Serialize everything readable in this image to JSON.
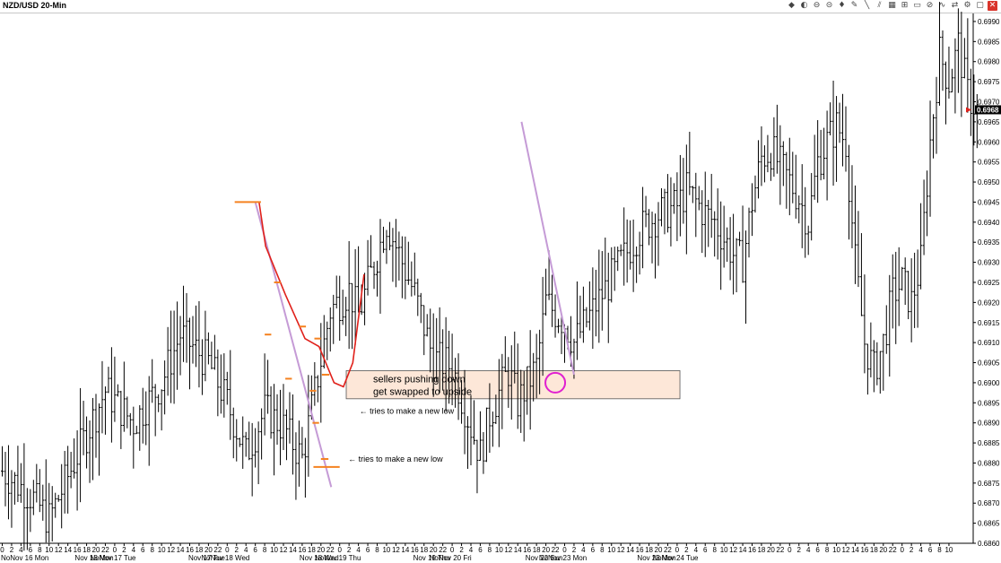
{
  "window": {
    "title": "NZD/USD 20-Min"
  },
  "toolbar": {
    "icons": [
      "chart-type-icon",
      "drawing-icon",
      "record-icon",
      "zoom-out-icon",
      "marker-icon",
      "pencil-icon",
      "line-icon",
      "channel-icon",
      "grid-icon",
      "fibonacci-icon",
      "ellipse-icon",
      "indicator-icon",
      "wave-icon",
      "arrows-icon",
      "settings-icon",
      "maximize-icon",
      "close-icon"
    ],
    "glyphs": [
      "◆",
      "◐",
      "⊖",
      "⊝",
      "♦",
      "✎",
      "╲",
      "⫽",
      "▦",
      "⊞",
      "▭",
      "⊘",
      "∿",
      "⇄",
      "⚙",
      "▢",
      "✕"
    ]
  },
  "annotations": {
    "box_line1": "sellers pushing down",
    "box_line2": "get swapped to upside",
    "note1": "tries to make a new low",
    "note2": "tries to make a new low"
  },
  "chart_data": {
    "type": "bar",
    "instrument": "NZD/USD",
    "timeframe": "20-Min",
    "ylim": [
      0.686,
      0.6992
    ],
    "y_ticks": [
      "0.6990",
      "0.6985",
      "0.6980",
      "0.6975",
      "0.6970",
      "0.6965",
      "0.6960",
      "0.6955",
      "0.6950",
      "0.6945",
      "0.6940",
      "0.6935",
      "0.6930",
      "0.6925",
      "0.6920",
      "0.6915",
      "0.6910",
      "0.6905",
      "0.6900",
      "0.6895",
      "0.6890",
      "0.6885",
      "0.6880",
      "0.6875",
      "0.6870",
      "0.6865",
      "0.6860"
    ],
    "last_price": "0.6968",
    "x_hour_labels": [
      "0",
      "2",
      "4",
      "6",
      "8",
      "10",
      "12",
      "14",
      "16",
      "18",
      "20",
      "22",
      "0",
      "2",
      "4",
      "6",
      "8",
      "10",
      "12",
      "14",
      "16",
      "18",
      "20",
      "22",
      "0",
      "2",
      "4",
      "6",
      "8",
      "10",
      "12",
      "14",
      "16",
      "18",
      "20",
      "22",
      "0",
      "2",
      "4",
      "6",
      "8",
      "10",
      "12",
      "14",
      "16",
      "18",
      "20",
      "22",
      "0",
      "2",
      "4",
      "6",
      "8",
      "10",
      "12",
      "14",
      "16",
      "18",
      "20",
      "22",
      "0",
      "2",
      "4",
      "6",
      "8",
      "10",
      "12",
      "14",
      "16",
      "18",
      "20",
      "22",
      "0",
      "2",
      "4",
      "6",
      "8",
      "10",
      "12",
      "14",
      "16",
      "18",
      "20",
      "22",
      "0",
      "2",
      "4",
      "6",
      "8",
      "10",
      "12",
      "14",
      "16",
      "18",
      "20",
      "22",
      "0",
      "2",
      "4",
      "6",
      "8",
      "10"
    ],
    "x_day_labels": [
      {
        "text": "NoNov 16 Mon",
        "hour_index": 0
      },
      {
        "text": "Nov 16 Mon",
        "hour_index": 10
      },
      {
        "text": "NoNov 17 Tue",
        "hour_index": 12
      },
      {
        "text": "Nov 17 Tue",
        "hour_index": 22
      },
      {
        "text": "NoNov 18 Wed",
        "hour_index": 24
      },
      {
        "text": "Nov 18 Wed",
        "hour_index": 34
      },
      {
        "text": "NoNov 19 Thu",
        "hour_index": 36
      },
      {
        "text": "Nov 19 Thu",
        "hour_index": 46
      },
      {
        "text": "NoNov 20 Fri",
        "hour_index": 48
      },
      {
        "text": "Nov 22 Sun",
        "hour_index": 58
      },
      {
        "text": "NoNov 23 Mon",
        "hour_index": 60
      },
      {
        "text": "Nov 23 Mon",
        "hour_index": 70
      },
      {
        "text": "NoNov 24 Tue",
        "hour_index": 72
      }
    ],
    "price_path": [
      [
        0,
        0.6878
      ],
      [
        3,
        0.6872
      ],
      [
        5,
        0.6866
      ],
      [
        8,
        0.6882
      ],
      [
        11,
        0.6898
      ],
      [
        14,
        0.689
      ],
      [
        17,
        0.69
      ],
      [
        19,
        0.6912
      ],
      [
        22,
        0.6905
      ],
      [
        24,
        0.6895
      ],
      [
        26,
        0.6882
      ],
      [
        28,
        0.6893
      ],
      [
        30,
        0.6889
      ],
      [
        32,
        0.6881
      ],
      [
        35,
        0.6918
      ],
      [
        37,
        0.6923
      ],
      [
        38,
        0.6917
      ],
      [
        40,
        0.6932
      ],
      [
        41,
        0.694
      ],
      [
        42,
        0.6934
      ],
      [
        44,
        0.6922
      ],
      [
        46,
        0.6906
      ],
      [
        48,
        0.6904
      ],
      [
        50,
        0.6889
      ],
      [
        51,
        0.6882
      ],
      [
        52,
        0.6892
      ],
      [
        54,
        0.6903
      ],
      [
        55,
        0.6895
      ],
      [
        57,
        0.6904
      ],
      [
        58,
        0.692
      ],
      [
        60,
        0.6915
      ],
      [
        61,
        0.691
      ],
      [
        62,
        0.6914
      ],
      [
        64,
        0.6922
      ],
      [
        66,
        0.693
      ],
      [
        68,
        0.6938
      ],
      [
        70,
        0.6942
      ],
      [
        72,
        0.6944
      ],
      [
        73,
        0.6948
      ],
      [
        75,
        0.6942
      ],
      [
        76,
        0.694
      ],
      [
        78,
        0.6932
      ],
      [
        79,
        0.693
      ],
      [
        80,
        0.6945
      ],
      [
        81,
        0.6956
      ],
      [
        82,
        0.6958
      ],
      [
        84,
        0.695
      ],
      [
        85,
        0.6946
      ],
      [
        86,
        0.694
      ],
      [
        87,
        0.6955
      ],
      [
        88,
        0.696
      ],
      [
        89,
        0.6964
      ],
      [
        90,
        0.696
      ],
      [
        91,
        0.693
      ],
      [
        92,
        0.691
      ],
      [
        93,
        0.6903
      ],
      [
        94,
        0.691
      ],
      [
        95,
        0.6922
      ],
      [
        96,
        0.6925
      ],
      [
        97,
        0.692
      ],
      [
        98,
        0.693
      ],
      [
        99,
        0.696
      ],
      [
        100,
        0.6982
      ],
      [
        101,
        0.6975
      ],
      [
        102,
        0.6984
      ],
      [
        103,
        0.6972
      ],
      [
        104,
        0.6968
      ]
    ],
    "drawings": {
      "orange_levels": [
        {
          "price": 0.6945,
          "x0": 24.8,
          "x1": 27.6
        },
        {
          "price": 0.6879,
          "x0": 33.2,
          "x1": 36.0
        },
        {
          "price": 0.6925,
          "x0": 29.0,
          "x1": 29.7
        },
        {
          "price": 0.6912,
          "x0": 28.0,
          "x1": 28.7
        },
        {
          "price": 0.6914,
          "x0": 31.7,
          "x1": 32.4
        },
        {
          "price": 0.6911,
          "x0": 33.3,
          "x1": 34.0
        },
        {
          "price": 0.6902,
          "x0": 34.1,
          "x1": 34.9
        },
        {
          "price": 0.6901,
          "x0": 30.2,
          "x1": 30.9
        },
        {
          "price": 0.6898,
          "x0": 32.8,
          "x1": 33.5
        },
        {
          "price": 0.689,
          "x0": 33.1,
          "x1": 33.8
        },
        {
          "price": 0.6881,
          "x0": 34.0,
          "x1": 34.8
        }
      ],
      "red_path": [
        [
          27.4,
          0.6945
        ],
        [
          28.1,
          0.6934
        ],
        [
          30.2,
          0.6922
        ],
        [
          32.3,
          0.6911
        ],
        [
          33.8,
          0.6909
        ],
        [
          35.4,
          0.69
        ],
        [
          36.4,
          0.6899
        ],
        [
          37.4,
          0.6905
        ],
        [
          38.6,
          0.6927
        ]
      ],
      "purple_lines": [
        {
          "from": [
            27.0,
            0.6945
          ],
          "to": [
            35.1,
            0.6874
          ]
        },
        {
          "from": [
            55.4,
            0.6965
          ],
          "to": [
            61.0,
            0.6902
          ]
        }
      ],
      "zone": {
        "from_price": 0.6896,
        "to_price": 0.6903,
        "x0": 36.7,
        "x1": 72.3
      },
      "circle": {
        "x": 59.0,
        "price": 0.69
      },
      "red_marker_price": 0.6968
    }
  }
}
